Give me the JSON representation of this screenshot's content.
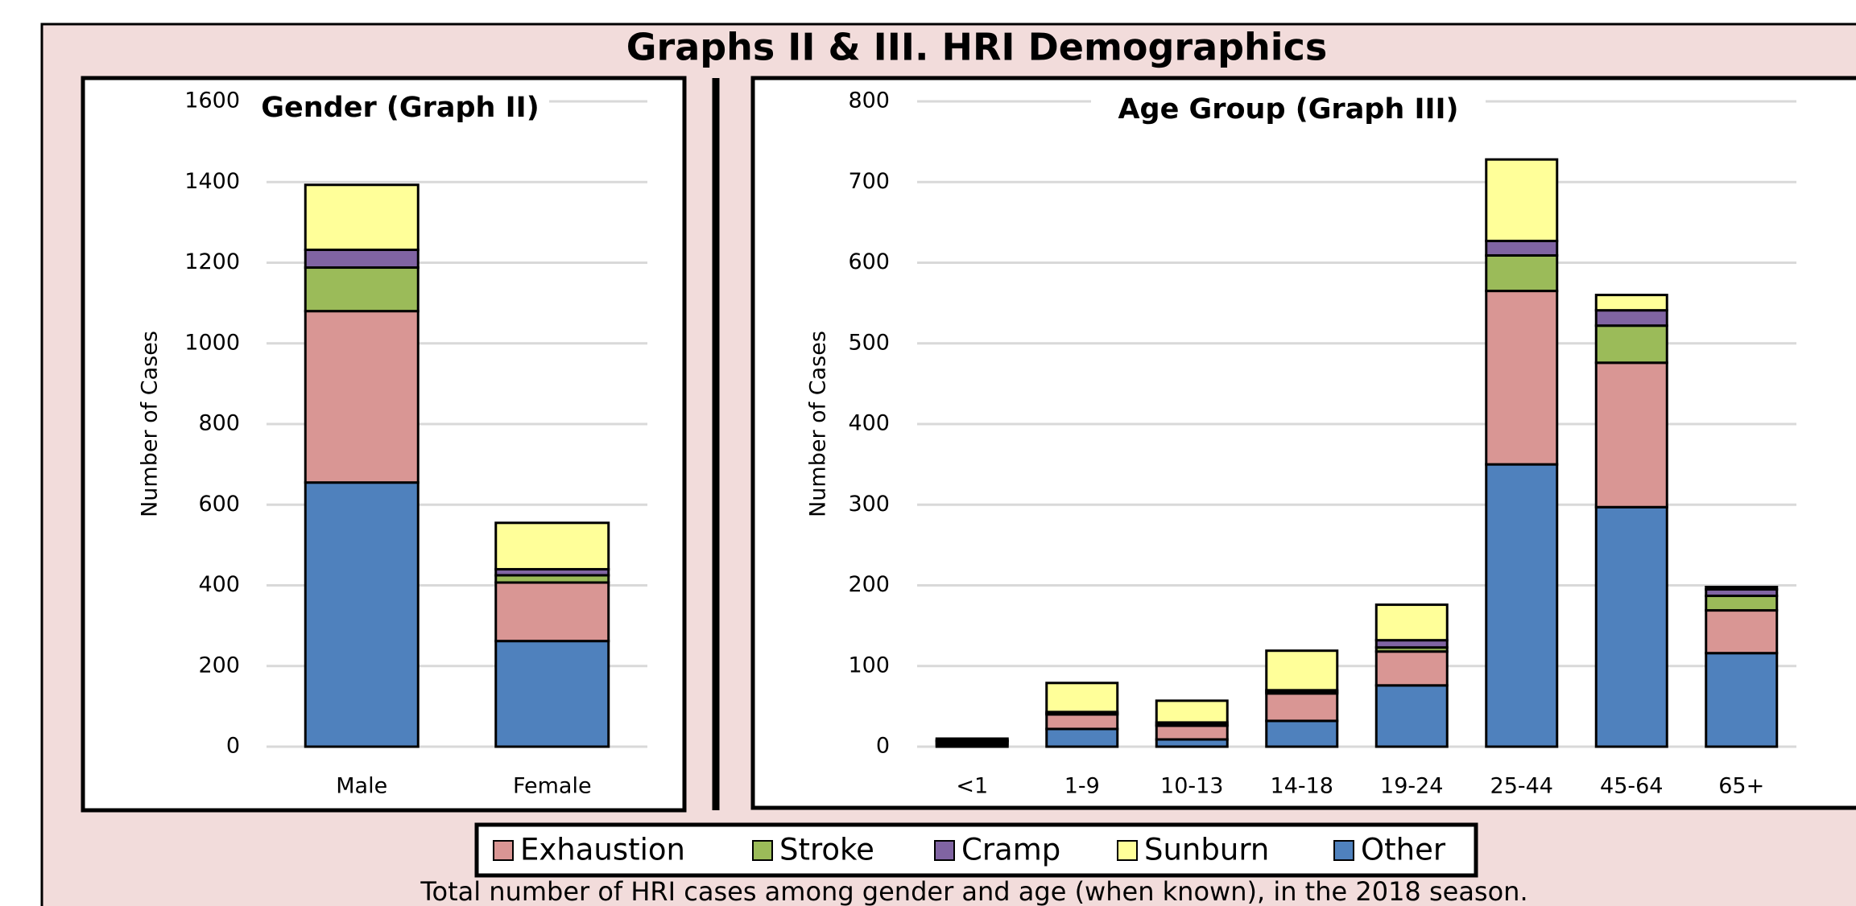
{
  "title": "Graphs II & III.  HRI Demographics",
  "caption": "Total number of HRI cases among gender and age (when known), in the 2018 season.",
  "chart_data": [
    {
      "type": "bar",
      "stacked": true,
      "title": "Gender (Graph II)",
      "y_label": "Number  of Cases",
      "categories": [
        "Male",
        "Female"
      ],
      "series": [
        {
          "name": "Exhaustion",
          "color": "#d99694",
          "values": [
            425,
            145
          ]
        },
        {
          "name": "Stroke",
          "color": "#9bbb59",
          "values": [
            108,
            18
          ]
        },
        {
          "name": "Cramp",
          "color": "#8064a2",
          "values": [
            44,
            15
          ]
        },
        {
          "name": "Sunburn",
          "color": "#ffff99",
          "values": [
            161,
            115
          ]
        },
        {
          "name": "Other",
          "color": "#4f81bd",
          "values": [
            655,
            262
          ]
        }
      ],
      "ylim": [
        0,
        1600
      ],
      "yticks": [
        0,
        200,
        400,
        600,
        800,
        1000,
        1200,
        1400,
        1600
      ],
      "grid": true
    },
    {
      "type": "bar",
      "stacked": true,
      "title": "Age Group (Graph III)",
      "y_label": "Number  of Cases",
      "categories": [
        "<1",
        "1-9",
        "10-13",
        "14-18",
        "19-24",
        "25-44",
        "45-64",
        "65+"
      ],
      "series": [
        {
          "name": "Exhaustion",
          "color": "#d99694",
          "values": [
            3,
            18,
            17,
            34,
            42,
            215,
            179,
            53
          ]
        },
        {
          "name": "Stroke",
          "color": "#9bbb59",
          "values": [
            1,
            1,
            1,
            2,
            5,
            44,
            46,
            18
          ]
        },
        {
          "name": "Cramp",
          "color": "#8064a2",
          "values": [
            1,
            2,
            3,
            2,
            9,
            18,
            19,
            8
          ]
        },
        {
          "name": "Sunburn",
          "color": "#ffff99",
          "values": [
            2,
            36,
            27,
            49,
            44,
            101,
            19,
            3
          ]
        },
        {
          "name": "Other",
          "color": "#4f81bd",
          "values": [
            3,
            22,
            9,
            32,
            76,
            350,
            297,
            116
          ]
        }
      ],
      "ylim": [
        0,
        800
      ],
      "yticks": [
        0,
        100,
        200,
        300,
        400,
        500,
        600,
        700,
        800
      ],
      "grid": true
    }
  ]
}
